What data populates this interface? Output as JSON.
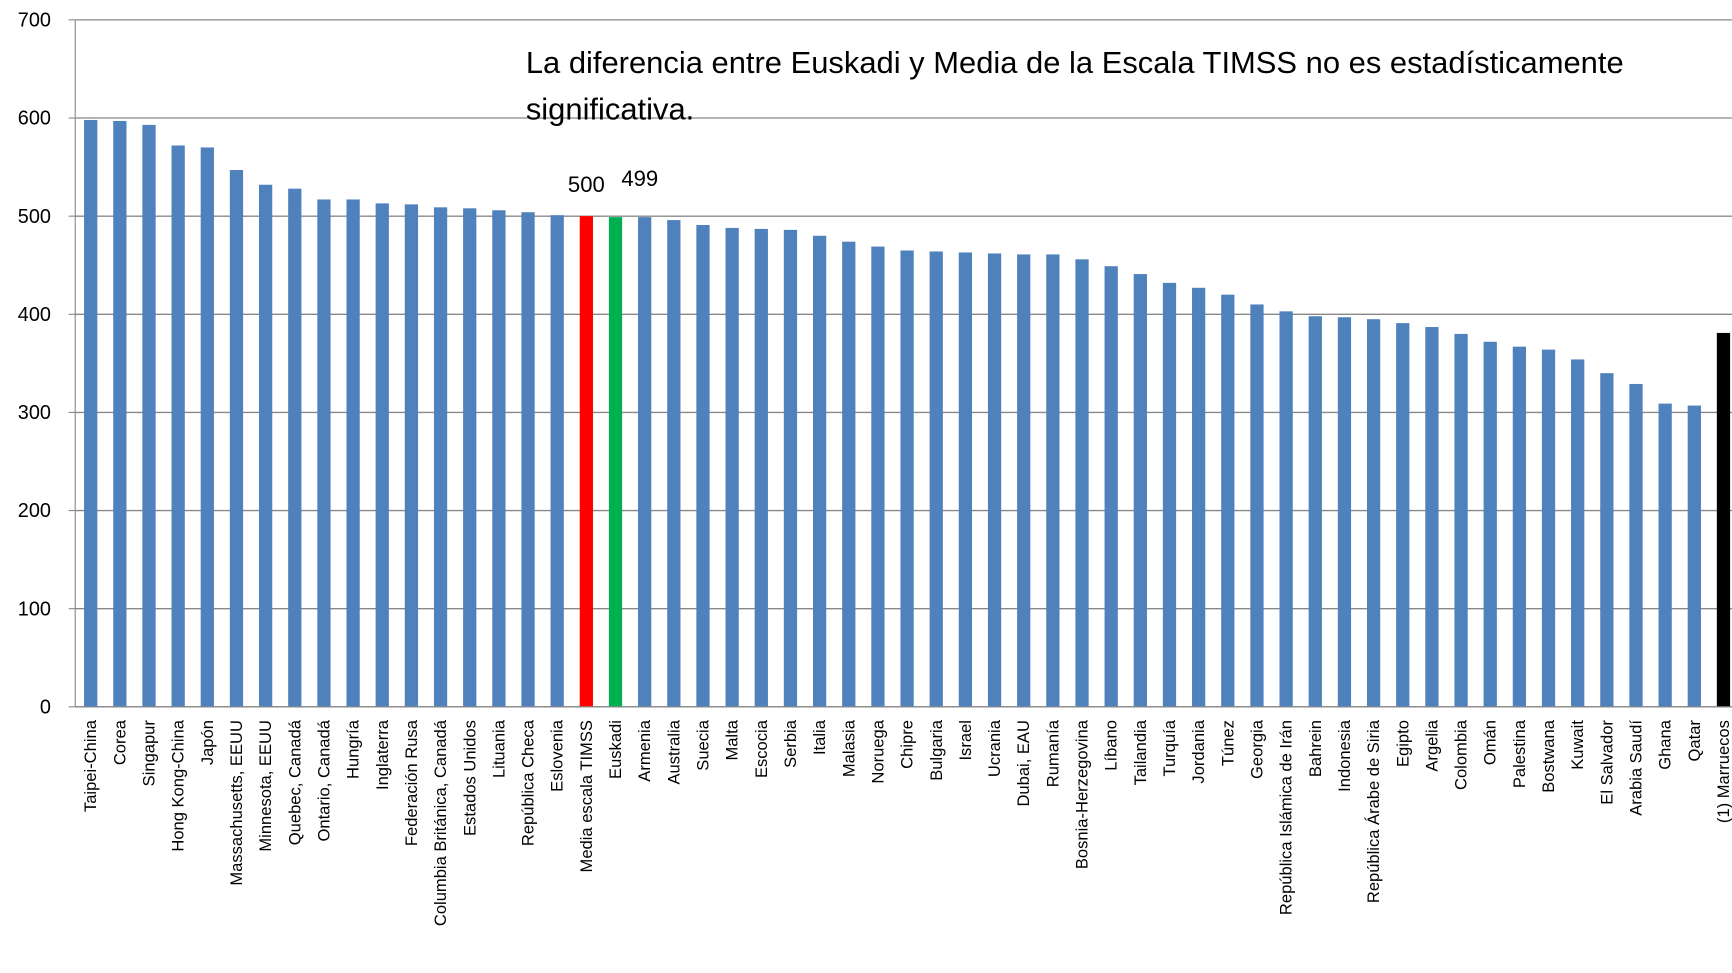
{
  "chart_data": {
    "type": "bar",
    "annotation": "La diferencia entre Euskadi y Media de la Escala TIMSS no es estadísticamente significativa.",
    "categories": [
      "Taipei-China",
      "Corea",
      "Singapur",
      "Hong Kong-China",
      "Japón",
      "Massachusetts, EEUU",
      "Minnesota, EEUU",
      "Quebec, Canadá",
      "Ontario, Canadá",
      "Hungría",
      "Inglaterra",
      "Federación Rusa",
      "Columbia Británica, Canadá",
      "Estados Unidos",
      "Lituania",
      "República Checa",
      "Eslovenia",
      "Media escala TIMSS",
      "Euskadi",
      "Armenia",
      "Australia",
      "Suecia",
      "Malta",
      "Escocia",
      "Serbia",
      "Italia",
      "Malasia",
      "Noruega",
      "Chipre",
      "Bulgaria",
      "Israel",
      "Ucrania",
      "Dubai, EAU",
      "Rumanía",
      "Bosnia-Herzegovina",
      "Líbano",
      "Tailandia",
      "Turquía",
      "Jordania",
      "Túnez",
      "Georgia",
      "República Islámica de Irán",
      "Bahrein",
      "Indonesia",
      "República Árabe de Siria",
      "Egipto",
      "Argelia",
      "Colombia",
      "Omán",
      "Palestina",
      "Bostwana",
      "Kuwait",
      "El Salvador",
      "Arabia Saudí",
      "Ghana",
      "Qatar",
      "(1) Marruecos"
    ],
    "values": [
      598,
      597,
      593,
      572,
      570,
      547,
      532,
      528,
      517,
      517,
      513,
      512,
      509,
      508,
      506,
      504,
      501,
      500,
      499,
      499,
      496,
      491,
      488,
      487,
      486,
      480,
      474,
      469,
      465,
      464,
      463,
      462,
      461,
      461,
      456,
      449,
      441,
      432,
      427,
      420,
      410,
      403,
      398,
      397,
      395,
      391,
      387,
      380,
      372,
      367,
      364,
      354,
      340,
      329,
      309,
      307,
      381
    ],
    "value_labels": [
      null,
      null,
      null,
      null,
      null,
      null,
      null,
      null,
      null,
      null,
      null,
      null,
      null,
      null,
      null,
      null,
      null,
      "500",
      "499",
      null,
      null,
      null,
      null,
      null,
      null,
      null,
      null,
      null,
      null,
      null,
      null,
      null,
      null,
      null,
      null,
      null,
      null,
      null,
      null,
      null,
      null,
      null,
      null,
      null,
      null,
      null,
      null,
      null,
      null,
      null,
      null,
      null,
      null,
      null,
      null,
      null,
      null
    ],
    "color": "#4f81bd",
    "colors": [
      null,
      null,
      null,
      null,
      null,
      null,
      null,
      null,
      null,
      null,
      null,
      null,
      null,
      null,
      null,
      null,
      null,
      "#ff0000",
      "#00b050",
      null,
      null,
      null,
      null,
      null,
      null,
      null,
      null,
      null,
      null,
      null,
      null,
      null,
      null,
      null,
      null,
      null,
      null,
      null,
      null,
      null,
      null,
      null,
      null,
      null,
      null,
      null,
      null,
      null,
      null,
      null,
      null,
      null,
      null,
      null,
      null,
      null,
      "#000000"
    ],
    "ylim": [
      0,
      700
    ],
    "yticks": [
      0,
      100,
      200,
      300,
      400,
      500,
      600,
      700
    ],
    "grid": true
  }
}
